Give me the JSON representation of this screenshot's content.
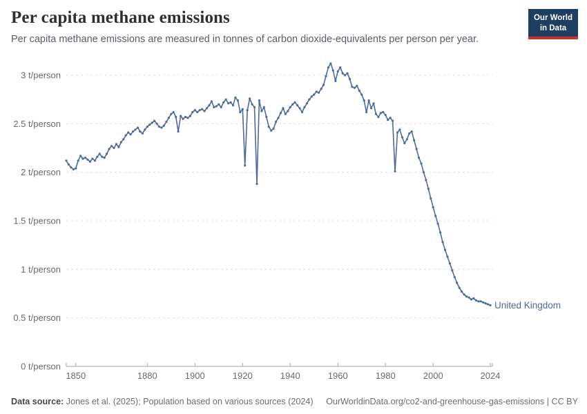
{
  "header": {
    "title": "Per capita methane emissions",
    "subtitle": "Per capita methane emissions are measured in tonnes of carbon dioxide-equivalents per person per year.",
    "logo": {
      "line1": "Our World",
      "line2": "in Data",
      "bg_color": "#1d3d63",
      "accent_color": "#cf2e27"
    }
  },
  "chart_data": {
    "type": "line",
    "title": "Per capita methane emissions",
    "xlabel": "",
    "ylabel": "t/person",
    "xlim": [
      1846,
      2024
    ],
    "ylim": [
      0,
      3
    ],
    "grid": true,
    "grid_style": "dashed",
    "legend_position": "end-of-line-label",
    "x_ticks": [
      1850,
      1880,
      1900,
      1920,
      1940,
      1960,
      1980,
      2000,
      2024
    ],
    "y_ticks": [
      {
        "value": 3,
        "label": "3 t/person"
      },
      {
        "value": 2.5,
        "label": "2.5 t/person"
      },
      {
        "value": 2,
        "label": "2 t/person"
      },
      {
        "value": 1.5,
        "label": "1.5 t/person"
      },
      {
        "value": 1,
        "label": "1 t/person"
      },
      {
        "value": 0.5,
        "label": "0.5 t/person"
      },
      {
        "value": 0,
        "label": "0 t/person"
      }
    ],
    "series": [
      {
        "name": "United Kingdom",
        "color": "#4c6a9c",
        "marker": "dot",
        "x_start": 1846,
        "x_step": 1,
        "values": [
          2.12,
          2.08,
          2.05,
          2.03,
          2.04,
          2.12,
          2.17,
          2.14,
          2.15,
          2.13,
          2.11,
          2.14,
          2.12,
          2.16,
          2.19,
          2.16,
          2.15,
          2.19,
          2.24,
          2.27,
          2.25,
          2.29,
          2.26,
          2.31,
          2.34,
          2.38,
          2.41,
          2.39,
          2.42,
          2.44,
          2.46,
          2.42,
          2.4,
          2.44,
          2.47,
          2.49,
          2.51,
          2.53,
          2.5,
          2.47,
          2.46,
          2.48,
          2.52,
          2.56,
          2.6,
          2.62,
          2.57,
          2.42,
          2.58,
          2.55,
          2.57,
          2.56,
          2.58,
          2.62,
          2.64,
          2.62,
          2.64,
          2.65,
          2.63,
          2.66,
          2.69,
          2.73,
          2.67,
          2.68,
          2.7,
          2.67,
          2.72,
          2.75,
          2.71,
          2.72,
          2.69,
          2.77,
          2.74,
          2.62,
          2.65,
          2.07,
          2.64,
          2.76,
          2.7,
          2.67,
          1.88,
          2.74,
          2.63,
          2.67,
          2.57,
          2.47,
          2.43,
          2.45,
          2.52,
          2.56,
          2.61,
          2.66,
          2.6,
          2.63,
          2.67,
          2.7,
          2.72,
          2.69,
          2.66,
          2.62,
          2.67,
          2.71,
          2.75,
          2.78,
          2.8,
          2.83,
          2.82,
          2.86,
          2.9,
          2.99,
          3.08,
          3.12,
          3.05,
          2.94,
          3.04,
          3.08,
          3.02,
          3.0,
          3.02,
          2.96,
          2.88,
          2.87,
          2.89,
          2.84,
          2.8,
          2.74,
          2.62,
          2.74,
          2.66,
          2.71,
          2.6,
          2.57,
          2.61,
          2.62,
          2.59,
          2.54,
          2.56,
          2.53,
          2.01,
          2.41,
          2.44,
          2.36,
          2.3,
          2.34,
          2.4,
          2.42,
          2.33,
          2.24,
          2.15,
          2.09,
          2.0,
          1.92,
          1.83,
          1.73,
          1.64,
          1.55,
          1.47,
          1.38,
          1.28,
          1.2,
          1.13,
          1.06,
          0.99,
          0.92,
          0.86,
          0.81,
          0.77,
          0.74,
          0.72,
          0.71,
          0.69,
          0.7,
          0.68,
          0.67,
          0.67,
          0.66,
          0.65,
          0.64,
          0.63
        ],
        "end_label": "United Kingdom"
      }
    ]
  },
  "footer": {
    "source_label": "Data source:",
    "source_text": " Jones et al. (2025); Population based on various sources (2024)",
    "attribution": "OurWorldinData.org/co2-and-greenhouse-gas-emissions | CC BY"
  }
}
